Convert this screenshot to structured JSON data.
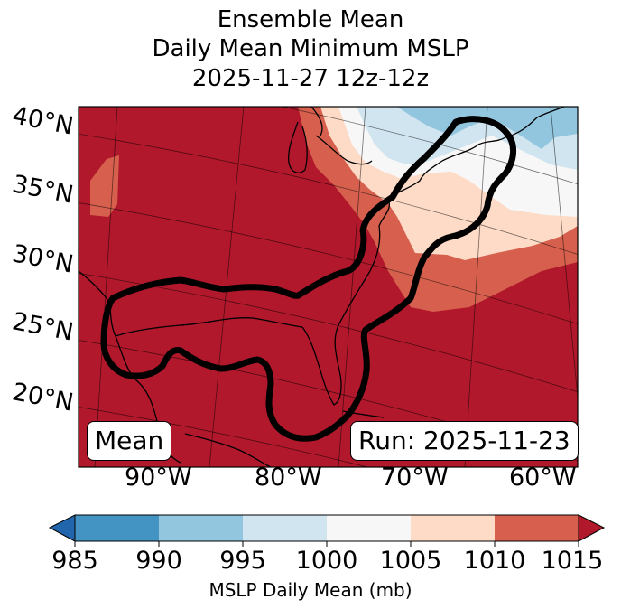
{
  "title": {
    "line1": "Ensemble Mean",
    "line2": "Daily Mean Minimum MSLP",
    "line3": "2025-11-27 12z-12z"
  },
  "map": {
    "lat_labels": [
      "40°N",
      "35°N",
      "30°N",
      "25°N",
      "20°N"
    ],
    "lon_labels": [
      "90°W",
      "80°W",
      "70°W",
      "60°W"
    ],
    "box_left": "Mean",
    "box_right": "Run: 2025-11-23"
  },
  "colorbar": {
    "ticks": [
      "985",
      "990",
      "995",
      "1000",
      "1005",
      "1010",
      "1015"
    ],
    "colors": [
      "#4393c3",
      "#92c5de",
      "#d1e5f0",
      "#f7f7f7",
      "#fddbc7",
      "#d6604d",
      "#b2182b"
    ],
    "under_color": "#2166ac",
    "over_color": "#b2182b",
    "label": "MSLP Daily Mean (mb)"
  }
}
